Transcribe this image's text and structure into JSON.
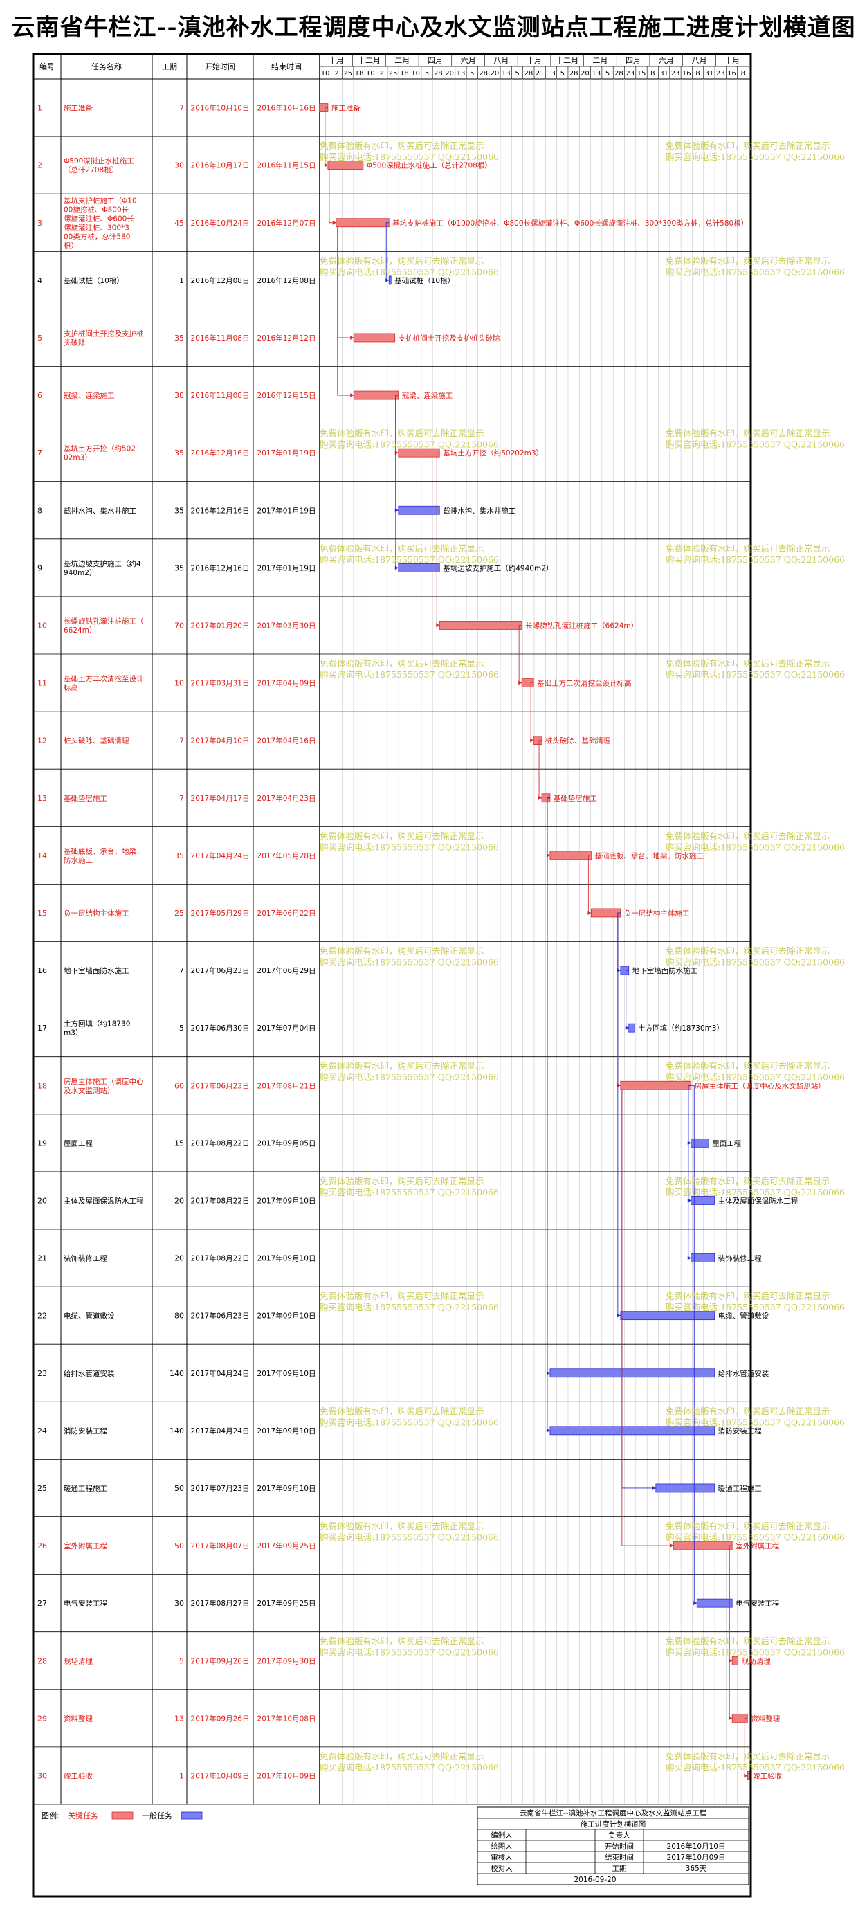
{
  "title": "云南省牛栏江--滇池补水工程调度中心及水文监测站点工程施工进度计划横道图",
  "headers": {
    "no": "编号",
    "name": "任务名称",
    "dur": "工期",
    "start": "开始时间",
    "end": "结束时间"
  },
  "timeline": {
    "months": [
      "十月",
      "十二月",
      "二月",
      "四月",
      "六月",
      "八月",
      "十月",
      "十二月",
      "二月",
      "四月",
      "六月",
      "八月",
      "十月"
    ],
    "days": [
      "10",
      "2",
      "25",
      "18",
      "10",
      "2",
      "25",
      "18",
      "10",
      "5",
      "28",
      "20",
      "13",
      "5",
      "28",
      "20",
      "13",
      "5",
      "28",
      "21",
      "13",
      "5",
      "28",
      "20",
      "13",
      "5",
      "28",
      "23",
      "15",
      "8",
      "31",
      "23",
      "16",
      "8",
      "31",
      "23",
      "16",
      "8"
    ],
    "range": [
      "2016-10-10",
      "2017-10-09"
    ]
  },
  "tasks": [
    {
      "no": "1",
      "name": "施工准备",
      "dur": "7",
      "start": "2016年10月10日",
      "end": "2016年10月16日",
      "bar": "施工准备",
      "critical": true,
      "s": "2016-10-10",
      "e": "2016-10-16"
    },
    {
      "no": "2",
      "name": "Φ500深搅止水桩施工（总计2708根）",
      "dur": "30",
      "start": "2016年10月17日",
      "end": "2016年11月15日",
      "bar": "Φ500深搅止水桩施工（总计2708根）",
      "critical": true,
      "s": "2016-10-17",
      "e": "2016-11-15"
    },
    {
      "no": "3",
      "name": "基坑支护桩施工（Φ1000旋挖桩、Φ800长螺旋灌注桩、Φ600长螺旋灌注桩、300*300类方桩，总计580根）",
      "dur": "45",
      "start": "2016年10月24日",
      "end": "2016年12月07日",
      "bar": "基坑支护桩施工（Φ1000旋挖桩、Φ800长螺旋灌注桩、Φ600长螺旋灌注桩、300*300类方桩，总计580根）",
      "critical": true,
      "s": "2016-10-24",
      "e": "2016-12-07"
    },
    {
      "no": "4",
      "name": "基础试桩（10根）",
      "dur": "1",
      "start": "2016年12月08日",
      "end": "2016年12月08日",
      "bar": "基础试桩（10根）",
      "critical": false,
      "s": "2016-12-08",
      "e": "2016-12-08"
    },
    {
      "no": "5",
      "name": "支护桩间土开挖及支护桩头破除",
      "dur": "35",
      "start": "2016年11月08日",
      "end": "2016年12月12日",
      "bar": "支护桩间土开挖及支护桩头破除",
      "critical": true,
      "s": "2016-11-08",
      "e": "2016-12-12"
    },
    {
      "no": "6",
      "name": "冠梁、连梁施工",
      "dur": "38",
      "start": "2016年11月08日",
      "end": "2016年12月15日",
      "bar": "冠梁、连梁施工",
      "critical": true,
      "s": "2016-11-08",
      "e": "2016-12-15"
    },
    {
      "no": "7",
      "name": "基坑土方开挖（约50202m3）",
      "dur": "35",
      "start": "2016年12月16日",
      "end": "2017年01月19日",
      "bar": "基坑土方开挖（约50202m3）",
      "critical": true,
      "s": "2016-12-16",
      "e": "2017-01-19"
    },
    {
      "no": "8",
      "name": "截排水沟、集水井施工",
      "dur": "35",
      "start": "2016年12月16日",
      "end": "2017年01月19日",
      "bar": "截排水沟、集水井施工",
      "critical": false,
      "s": "2016-12-16",
      "e": "2017-01-19"
    },
    {
      "no": "9",
      "name": "基坑边坡支护施工（约4940m2）",
      "dur": "35",
      "start": "2016年12月16日",
      "end": "2017年01月19日",
      "bar": "基坑边坡支护施工（约4940m2）",
      "critical": false,
      "s": "2016-12-16",
      "e": "2017-01-19"
    },
    {
      "no": "10",
      "name": "长螺旋钻孔灌注桩施工（6624m）",
      "dur": "70",
      "start": "2017年01月20日",
      "end": "2017年03月30日",
      "bar": "长螺旋钻孔灌注桩施工（6624m）",
      "critical": true,
      "s": "2017-01-20",
      "e": "2017-03-30"
    },
    {
      "no": "11",
      "name": "基础土方二次清挖至设计标高",
      "dur": "10",
      "start": "2017年03月31日",
      "end": "2017年04月09日",
      "bar": "基础土方二次清挖至设计标高",
      "critical": true,
      "s": "2017-03-31",
      "e": "2017-04-09"
    },
    {
      "no": "12",
      "name": "桩头破除、基础清理",
      "dur": "7",
      "start": "2017年04月10日",
      "end": "2017年04月16日",
      "bar": "桩头破除、基础清理",
      "critical": true,
      "s": "2017-04-10",
      "e": "2017-04-16"
    },
    {
      "no": "13",
      "name": "基础垫层施工",
      "dur": "7",
      "start": "2017年04月17日",
      "end": "2017年04月23日",
      "bar": "基础垫层施工",
      "critical": true,
      "s": "2017-04-17",
      "e": "2017-04-23"
    },
    {
      "no": "14",
      "name": "基础底板、承台、地梁、防水施工",
      "dur": "35",
      "start": "2017年04月24日",
      "end": "2017年05月28日",
      "bar": "基础底板、承台、地梁、防水施工",
      "critical": true,
      "s": "2017-04-24",
      "e": "2017-05-28"
    },
    {
      "no": "15",
      "name": "负一层结构主体施工",
      "dur": "25",
      "start": "2017年05月29日",
      "end": "2017年06月22日",
      "bar": "负一层结构主体施工",
      "critical": true,
      "s": "2017-05-29",
      "e": "2017-06-22"
    },
    {
      "no": "16",
      "name": "地下室墙面防水施工",
      "dur": "7",
      "start": "2017年06月23日",
      "end": "2017年06月29日",
      "bar": "地下室墙面防水施工",
      "critical": false,
      "s": "2017-06-23",
      "e": "2017-06-29"
    },
    {
      "no": "17",
      "name": "土方回填（约18730m3）",
      "dur": "5",
      "start": "2017年06月30日",
      "end": "2017年07月04日",
      "bar": "土方回填（约18730m3）",
      "critical": false,
      "s": "2017-06-30",
      "e": "2017-07-04"
    },
    {
      "no": "18",
      "name": "房屋主体施工（调度中心及水文监测站）",
      "dur": "60",
      "start": "2017年06月23日",
      "end": "2017年08月21日",
      "bar": "房屋主体施工（调度中心及水文监测站）",
      "critical": true,
      "s": "2017-06-23",
      "e": "2017-08-21"
    },
    {
      "no": "19",
      "name": "屋面工程",
      "dur": "15",
      "start": "2017年08月22日",
      "end": "2017年09月05日",
      "bar": "屋面工程",
      "critical": false,
      "s": "2017-08-22",
      "e": "2017-09-05"
    },
    {
      "no": "20",
      "name": "主体及屋面保温防水工程",
      "dur": "20",
      "start": "2017年08月22日",
      "end": "2017年09月10日",
      "bar": "主体及屋面保温防水工程",
      "critical": false,
      "s": "2017-08-22",
      "e": "2017-09-10"
    },
    {
      "no": "21",
      "name": "装饰装修工程",
      "dur": "20",
      "start": "2017年08月22日",
      "end": "2017年09月10日",
      "bar": "装饰装修工程",
      "critical": false,
      "s": "2017-08-22",
      "e": "2017-09-10"
    },
    {
      "no": "22",
      "name": "电缆、管道敷设",
      "dur": "80",
      "start": "2017年06月23日",
      "end": "2017年09月10日",
      "bar": "电缆、管道敷设",
      "critical": false,
      "s": "2017-06-23",
      "e": "2017-09-10"
    },
    {
      "no": "23",
      "name": "给排水管道安装",
      "dur": "140",
      "start": "2017年04月24日",
      "end": "2017年09月10日",
      "bar": "给排水管道安装",
      "critical": false,
      "s": "2017-04-24",
      "e": "2017-09-10"
    },
    {
      "no": "24",
      "name": "消防安装工程",
      "dur": "140",
      "start": "2017年04月24日",
      "end": "2017年09月10日",
      "bar": "消防安装工程",
      "critical": false,
      "s": "2017-04-24",
      "e": "2017-09-10"
    },
    {
      "no": "25",
      "name": "暖通工程施工",
      "dur": "50",
      "start": "2017年07月23日",
      "end": "2017年09月10日",
      "bar": "暖通工程施工",
      "critical": false,
      "s": "2017-07-23",
      "e": "2017-09-10"
    },
    {
      "no": "26",
      "name": "室外附属工程",
      "dur": "50",
      "start": "2017年08月07日",
      "end": "2017年09月25日",
      "bar": "室外附属工程",
      "critical": true,
      "s": "2017-08-07",
      "e": "2017-09-25"
    },
    {
      "no": "27",
      "name": "电气安装工程",
      "dur": "30",
      "start": "2017年08月27日",
      "end": "2017年09月25日",
      "bar": "电气安装工程",
      "critical": false,
      "s": "2017-08-27",
      "e": "2017-09-25"
    },
    {
      "no": "28",
      "name": "现场清理",
      "dur": "5",
      "start": "2017年09月26日",
      "end": "2017年09月30日",
      "bar": "现场清理",
      "critical": true,
      "s": "2017-09-26",
      "e": "2017-09-30"
    },
    {
      "no": "29",
      "name": "资料整理",
      "dur": "13",
      "start": "2017年09月26日",
      "end": "2017年10月08日",
      "bar": "资料整理",
      "critical": true,
      "s": "2017-09-26",
      "e": "2017-10-08"
    },
    {
      "no": "30",
      "name": "竣工验收",
      "dur": "1",
      "start": "2017年10月09日",
      "end": "2017年10月09日",
      "bar": "竣工验收",
      "critical": true,
      "s": "2017-10-09",
      "e": "2017-10-09"
    }
  ],
  "legend": {
    "label": "图例:",
    "critical": "关键任务",
    "normal": "一般任务"
  },
  "watermark": {
    "line1": "免费体验版有水印，购买后可去除正常显示",
    "line2": "购买咨询电话:18755550537 QQ:22150066"
  },
  "info": {
    "project": "云南省牛栏江--滇池补水工程调度中心及水文监测站点工程",
    "chart": "施工进度计划横道图",
    "rows": [
      [
        "编制人",
        "",
        "负责人",
        ""
      ],
      [
        "绘图人",
        "",
        "开始时间",
        "2016年10月10日"
      ],
      [
        "审核人",
        "",
        "结束时间",
        "2017年10月09日"
      ],
      [
        "校对人",
        "",
        "工期",
        "365天"
      ]
    ],
    "date": "2016-09-20"
  },
  "colors": {
    "critical": "#f08080",
    "critical_stroke": "#d32f2f",
    "normal": "#7b7ff0",
    "normal_stroke": "#2b2bd6",
    "text_critical": "#e0201a",
    "text_normal": "#000000",
    "watermark": "#c8c84a"
  }
}
